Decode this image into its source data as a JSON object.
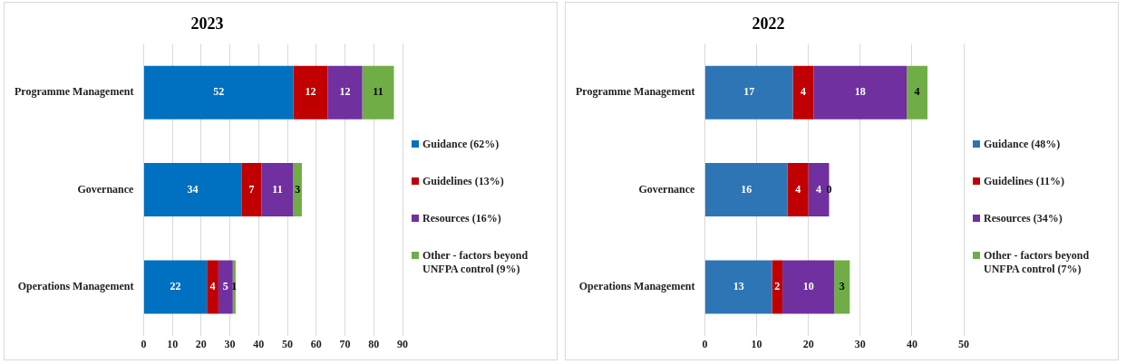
{
  "chart_data": [
    {
      "type": "bar",
      "title": "2023",
      "orientation": "horizontal",
      "stacked": true,
      "categories": [
        "Programme Management",
        "Governance",
        "Operations Management"
      ],
      "series": [
        {
          "name": "Guidance (62%)",
          "color": "#0070c0",
          "values": [
            52,
            34,
            22
          ]
        },
        {
          "name": "Guidelines (13%)",
          "color": "#c00000",
          "values": [
            12,
            7,
            4
          ]
        },
        {
          "name": "Resources (16%)",
          "color": "#7030a0",
          "values": [
            12,
            11,
            5
          ]
        },
        {
          "name": "Other - factors beyond UNFPA control (9%)",
          "color": "#70ad47",
          "values": [
            11,
            3,
            1
          ]
        }
      ],
      "xlim": [
        0,
        90
      ],
      "xticks": [
        0,
        10,
        20,
        30,
        40,
        50,
        60,
        70,
        80,
        90
      ],
      "grid": "x",
      "legend": "right",
      "data_labels": true
    },
    {
      "type": "bar",
      "title": "2022",
      "orientation": "horizontal",
      "stacked": true,
      "categories": [
        "Programme Management",
        "Governance",
        "Operations Management"
      ],
      "series": [
        {
          "name": "Guidance (48%)",
          "color": "#2e75b6",
          "values": [
            17,
            16,
            13
          ]
        },
        {
          "name": "Guidelines (11%)",
          "color": "#c00000",
          "values": [
            4,
            4,
            2
          ]
        },
        {
          "name": "Resources (34%)",
          "color": "#7030a0",
          "values": [
            18,
            4,
            10
          ]
        },
        {
          "name": "Other - factors beyond UNFPA control (7%)",
          "color": "#70ad47",
          "values": [
            4,
            0,
            3
          ]
        }
      ],
      "xlim": [
        0,
        50
      ],
      "xticks": [
        0,
        10,
        20,
        30,
        40,
        50
      ],
      "grid": "x",
      "legend": "right",
      "data_labels": true
    }
  ]
}
